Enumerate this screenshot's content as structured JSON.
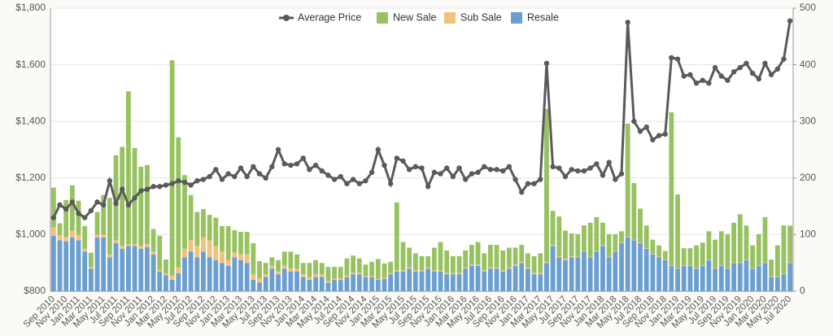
{
  "chart_data": {
    "type": "combo",
    "categories": [
      "Sep 2010",
      null,
      "Nov 2010",
      null,
      "Jan 2011",
      null,
      "Mar 2011",
      null,
      "May 2011",
      null,
      "Jul 2011",
      null,
      "Sep 2011",
      null,
      "Nov 2011",
      null,
      "Jan 2012",
      null,
      "Mar 2012",
      null,
      "May 2012",
      null,
      "Jul 2012",
      null,
      "Sep 2012",
      null,
      "Nov 2012",
      null,
      "Jan 2013",
      null,
      "Mar 2013",
      null,
      "May 2013",
      null,
      "Jul 2013",
      null,
      "Sep 2013",
      null,
      "Nov 2013",
      null,
      "Jan 2014",
      null,
      "Mar 2014",
      null,
      "May 2014",
      null,
      "Jul 2014",
      null,
      "Sep 2014",
      null,
      "Nov 2014",
      null,
      "Jan 2015",
      null,
      "Mar 2015",
      null,
      "May 2015",
      null,
      "Jul 2015",
      null,
      "Sep 2015",
      null,
      "Nov 2015",
      null,
      "Jan 2016",
      null,
      "Mar 2016",
      null,
      "May 2016",
      null,
      "Jul 2016",
      null,
      "Sep 2016",
      null,
      "Nov 2016",
      null,
      "Jan 2017",
      null,
      "Mar 2017",
      null,
      "May 2017",
      null,
      "Jul 2017",
      null,
      "Sep 2017",
      null,
      "Nov 2017",
      null,
      "Jan 2018",
      null,
      "Mar 2018",
      null,
      "May 2018",
      null,
      "Jul 2018",
      null,
      "Sep 2018",
      null,
      "Nov 2018",
      null,
      "Jan 2019",
      null,
      "Mar 2019",
      null,
      "May 2019",
      null,
      "Jul 2019",
      null,
      "Sep 2019",
      null,
      "Nov 2019",
      null,
      "Jan 2020",
      null,
      "Mar 2020",
      null,
      "May 2020",
      null,
      "Jul 2020"
    ],
    "series": [
      {
        "name": "Average Price",
        "type": "line",
        "color": "#5a5a5a",
        "values": [
          1060,
          1105,
          1090,
          1115,
          1075,
          1060,
          1085,
          1115,
          1105,
          1190,
          1110,
          1160,
          1105,
          1130,
          1155,
          1160,
          1170,
          1170,
          1175,
          1180,
          1190,
          1185,
          1175,
          1190,
          1195,
          1205,
          1230,
          1195,
          1215,
          1205,
          1235,
          1205,
          1240,
          1215,
          1200,
          1240,
          1300,
          1250,
          1245,
          1250,
          1270,
          1230,
          1245,
          1225,
          1210,
          1195,
          1205,
          1180,
          1195,
          1180,
          1190,
          1220,
          1300,
          1245,
          1180,
          1270,
          1260,
          1230,
          1240,
          1235,
          1170,
          1220,
          1215,
          1235,
          1205,
          1235,
          1195,
          1215,
          1220,
          1240,
          1230,
          1230,
          1225,
          1240,
          1195,
          1150,
          1180,
          1180,
          1195,
          1605,
          1240,
          1235,
          1205,
          1230,
          1225,
          1225,
          1235,
          1250,
          1210,
          1255,
          1195,
          1215,
          1750,
          1400,
          1365,
          1380,
          1335,
          1350,
          1355,
          1625,
          1620,
          1560,
          1565,
          1535,
          1545,
          1535,
          1590,
          1560,
          1545,
          1575,
          1590,
          1605,
          1570,
          1550,
          1605,
          1565,
          1585,
          1620,
          1755
        ]
      },
      {
        "name": "New Sale",
        "type": "bar",
        "axis": "y2",
        "color": "#98c262",
        "values": [
          70,
          20,
          65,
          80,
          60,
          40,
          25,
          40,
          70,
          100,
          150,
          175,
          270,
          170,
          140,
          140,
          40,
          60,
          25,
          380,
          230,
          130,
          80,
          60,
          50,
          45,
          50,
          45,
          60,
          40,
          40,
          40,
          55,
          30,
          20,
          15,
          20,
          25,
          30,
          25,
          20,
          25,
          25,
          20,
          25,
          20,
          20,
          30,
          30,
          25,
          20,
          25,
          35,
          25,
          20,
          120,
          50,
          35,
          30,
          25,
          20,
          40,
          50,
          40,
          30,
          30,
          30,
          35,
          40,
          30,
          40,
          40,
          35,
          35,
          30,
          30,
          25,
          30,
          35,
          270,
          60,
          70,
          50,
          40,
          40,
          45,
          60,
          60,
          40,
          40,
          30,
          20,
          200,
          100,
          60,
          40,
          25,
          20,
          15,
          270,
          130,
          30,
          30,
          40,
          40,
          50,
          50,
          60,
          60,
          70,
          85,
          60,
          40,
          55,
          80,
          30,
          55,
          85,
          65
        ]
      },
      {
        "name": "Sub Sale",
        "type": "bar",
        "axis": "y2",
        "color": "#f0c27b",
        "values": [
          15,
          10,
          8,
          12,
          10,
          5,
          3,
          5,
          5,
          5,
          5,
          5,
          3,
          3,
          5,
          5,
          5,
          3,
          3,
          8,
          10,
          15,
          20,
          20,
          25,
          30,
          25,
          20,
          10,
          8,
          10,
          15,
          10,
          8,
          5,
          5,
          5,
          5,
          5,
          5,
          5,
          5,
          5,
          5,
          3,
          3,
          3,
          3,
          3,
          3,
          2,
          2,
          2,
          2,
          2,
          2,
          2,
          2,
          2,
          2,
          2,
          2,
          2,
          2,
          2,
          2,
          2,
          2,
          2,
          2,
          2,
          2,
          2,
          2,
          2,
          2,
          2,
          2,
          2,
          2,
          2,
          2,
          2,
          2,
          1,
          1,
          1,
          1,
          1,
          1,
          1,
          1,
          1,
          1,
          1,
          1,
          1,
          1,
          1,
          1,
          1,
          1,
          1,
          1,
          1,
          1,
          1,
          1,
          1,
          1,
          1,
          1,
          1,
          1,
          1,
          1,
          1,
          1,
          1
        ]
      },
      {
        "name": "Resale",
        "type": "bar",
        "axis": "y2",
        "color": "#6a9fd0",
        "values": [
          98,
          90,
          88,
          95,
          90,
          70,
          40,
          95,
          95,
          60,
          85,
          75,
          80,
          80,
          75,
          78,
          65,
          35,
          28,
          20,
          32,
          60,
          70,
          60,
          70,
          60,
          55,
          50,
          45,
          60,
          55,
          50,
          20,
          15,
          25,
          40,
          30,
          40,
          35,
          35,
          25,
          20,
          25,
          25,
          15,
          20,
          20,
          25,
          30,
          30,
          25,
          25,
          20,
          22,
          30,
          35,
          35,
          40,
          35,
          35,
          40,
          35,
          35,
          30,
          30,
          30,
          40,
          45,
          45,
          35,
          40,
          40,
          35,
          40,
          45,
          50,
          40,
          30,
          30,
          50,
          80,
          60,
          55,
          60,
          60,
          70,
          60,
          70,
          80,
          60,
          70,
          85,
          95,
          90,
          85,
          75,
          65,
          60,
          55,
          45,
          40,
          45,
          45,
          40,
          45,
          55,
          40,
          45,
          40,
          50,
          50,
          55,
          40,
          45,
          50,
          25,
          25,
          30,
          50
        ]
      }
    ],
    "ylim": [
      800,
      1800
    ],
    "yticks": [
      {
        "value": 800,
        "label": "$800"
      },
      {
        "value": 1000,
        "label": "$1,000"
      },
      {
        "value": 1200,
        "label": "$1,200"
      },
      {
        "value": 1400,
        "label": "$1,400"
      },
      {
        "value": 1600,
        "label": "$1,600"
      },
      {
        "value": 1800,
        "label": "$1,800"
      }
    ],
    "y2lim": [
      0,
      500
    ],
    "y2ticks": [
      0,
      100,
      200,
      300,
      400,
      500
    ],
    "grid": true,
    "legend": "top"
  }
}
